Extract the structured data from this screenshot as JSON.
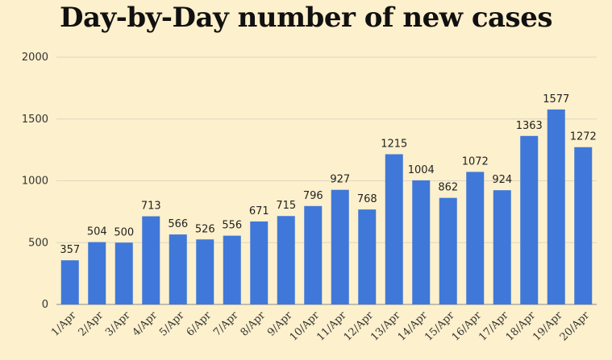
{
  "chart_data": {
    "type": "bar",
    "title": "Day-by-Day number of new cases",
    "categories": [
      "1/Apr",
      "2/Apr",
      "3/Apr",
      "4/Apr",
      "5/Apr",
      "6/Apr",
      "7/Apr",
      "8/Apr",
      "9/Apr",
      "10/Apr",
      "11/Apr",
      "12/Apr",
      "13/Apr",
      "14/Apr",
      "15/Apr",
      "16/Apr",
      "17/Apr",
      "18/Apr",
      "19/Apr",
      "20/Apr"
    ],
    "values": [
      357,
      504,
      500,
      713,
      566,
      526,
      556,
      671,
      715,
      796,
      927,
      768,
      1215,
      1004,
      862,
      1072,
      924,
      1363,
      1577,
      1272
    ],
    "data_labels": [
      "357",
      "504",
      "500",
      "713",
      "566",
      "526",
      "556",
      "671",
      "715",
      "796",
      "927",
      "768",
      "1215",
      "1004",
      "862",
      "1072",
      "924",
      "1363",
      "1577",
      "1272"
    ],
    "yticks": [
      0,
      500,
      1000,
      1500,
      2000
    ],
    "ytick_labels": [
      "0",
      "500",
      "1000",
      "1500",
      "2000"
    ],
    "ylim": [
      0,
      2000
    ],
    "grid": true,
    "bar_color": "#3f78d8",
    "grid_color": "#dcd6c2",
    "background_color": "#fdf0cc"
  }
}
